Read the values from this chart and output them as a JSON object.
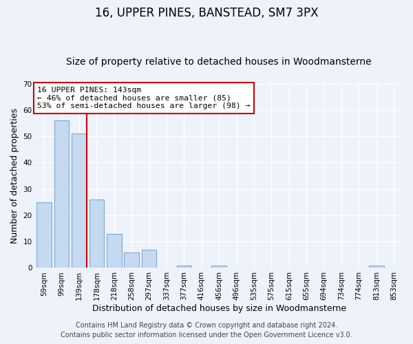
{
  "title": "16, UPPER PINES, BANSTEAD, SM7 3PX",
  "subtitle": "Size of property relative to detached houses in Woodmansterne",
  "xlabel": "Distribution of detached houses by size in Woodmansterne",
  "ylabel": "Number of detached properties",
  "bar_labels": [
    "59sqm",
    "99sqm",
    "139sqm",
    "178sqm",
    "218sqm",
    "258sqm",
    "297sqm",
    "337sqm",
    "377sqm",
    "416sqm",
    "456sqm",
    "496sqm",
    "535sqm",
    "575sqm",
    "615sqm",
    "655sqm",
    "694sqm",
    "734sqm",
    "774sqm",
    "813sqm",
    "853sqm"
  ],
  "bar_values": [
    25,
    56,
    51,
    26,
    13,
    6,
    7,
    0,
    1,
    0,
    1,
    0,
    0,
    0,
    0,
    0,
    0,
    0,
    0,
    1,
    0
  ],
  "bar_color": "#c5d9f1",
  "bar_edge_color": "#7aaad4",
  "ylim": [
    0,
    70
  ],
  "yticks": [
    0,
    10,
    20,
    30,
    40,
    50,
    60,
    70
  ],
  "marker_bar_index": 2,
  "marker_color": "#cc0000",
  "annotation_line1": "16 UPPER PINES: 143sqm",
  "annotation_line2": "← 46% of detached houses are smaller (85)",
  "annotation_line3": "53% of semi-detached houses are larger (98) →",
  "annotation_box_color": "#cc0000",
  "footer_line1": "Contains HM Land Registry data © Crown copyright and database right 2024.",
  "footer_line2": "Contains public sector information licensed under the Open Government Licence v3.0.",
  "background_color": "#eef2fa",
  "plot_background_color": "#eef2fa",
  "grid_color": "#ffffff",
  "title_fontsize": 12,
  "subtitle_fontsize": 10,
  "label_fontsize": 9,
  "tick_fontsize": 7.5,
  "footer_fontsize": 7
}
